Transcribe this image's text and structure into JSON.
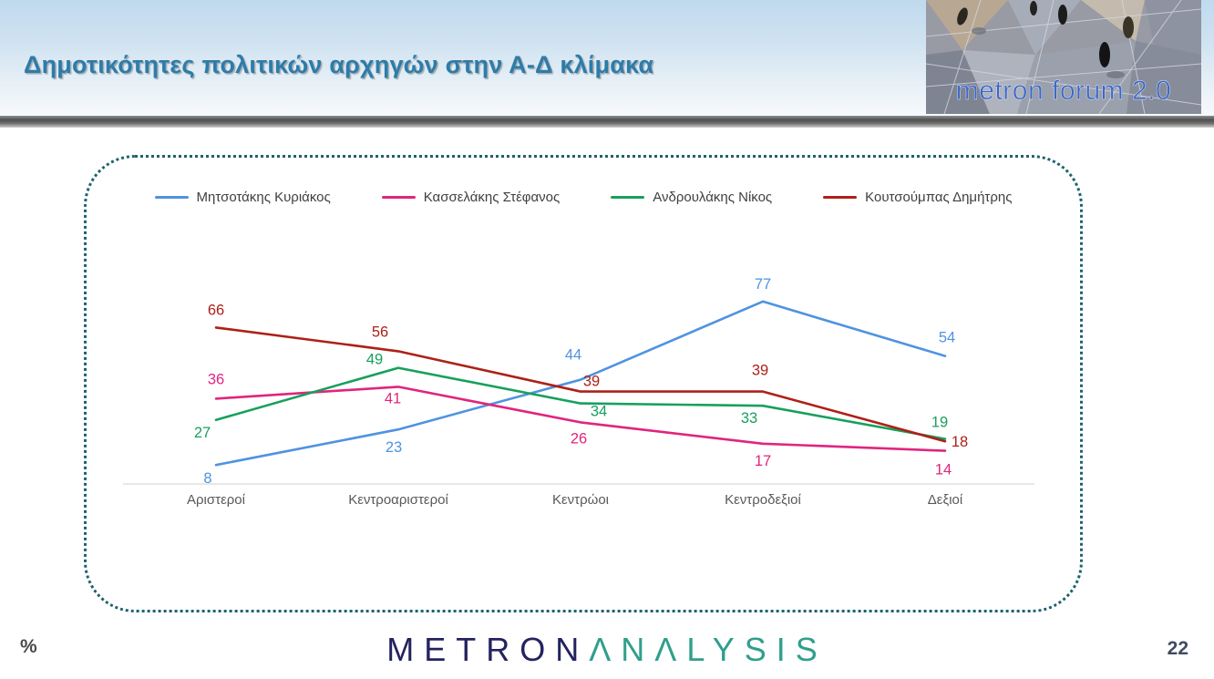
{
  "header": {
    "title": "Δημοτικότητες πολιτικών αρχηγών στην Α-Δ κλίμακα",
    "badge_text": "metron forum 2.0"
  },
  "footer": {
    "unit_label": "%",
    "logo_part1": "METRON",
    "logo_part2": "ΛNΛLYSIS",
    "page_number": "22"
  },
  "chart_data": {
    "type": "line",
    "title": "",
    "categories": [
      "Αριστεροί",
      "Κεντροαριστεροί",
      "Κεντρώοι",
      "Κεντροδεξιοί",
      "Δεξιοί"
    ],
    "series": [
      {
        "name": "Μητσοτάκης Κυριάκος",
        "color": "#4f93e0",
        "values": [
          8,
          23,
          44,
          77,
          54
        ],
        "label_offsets": [
          [
            -9,
            20
          ],
          [
            -5,
            25
          ],
          [
            -8,
            -22
          ],
          [
            0,
            -14
          ],
          [
            2,
            -15
          ]
        ]
      },
      {
        "name": "Κασσελάκης Στέφανος",
        "color": "#e0257e",
        "values": [
          36,
          41,
          26,
          17,
          14
        ],
        "label_offsets": [
          [
            0,
            -16
          ],
          [
            -6,
            18
          ],
          [
            -2,
            23
          ],
          [
            0,
            24
          ],
          [
            -2,
            26
          ]
        ]
      },
      {
        "name": "Ανδρουλάκης Νίκος",
        "color": "#17a05d",
        "values": [
          27,
          49,
          34,
          33,
          19
        ],
        "label_offsets": [
          [
            -15,
            19
          ],
          [
            -26,
            -4
          ],
          [
            20,
            14
          ],
          [
            -15,
            19
          ],
          [
            -6,
            -13
          ]
        ]
      },
      {
        "name": "Κουτσούμπας Δημήτρης",
        "color": "#ae2018",
        "values": [
          66,
          56,
          39,
          39,
          18
        ],
        "label_offsets": [
          [
            0,
            -14
          ],
          [
            -20,
            -16
          ],
          [
            12,
            -6
          ],
          [
            -3,
            -18
          ],
          [
            16,
            6
          ]
        ]
      }
    ],
    "unit": "%",
    "ylim": [
      0,
      95
    ],
    "grid": false,
    "legend_position": "top",
    "axis_line_color": "#d9d9d9",
    "category_label_color": "#595959"
  }
}
